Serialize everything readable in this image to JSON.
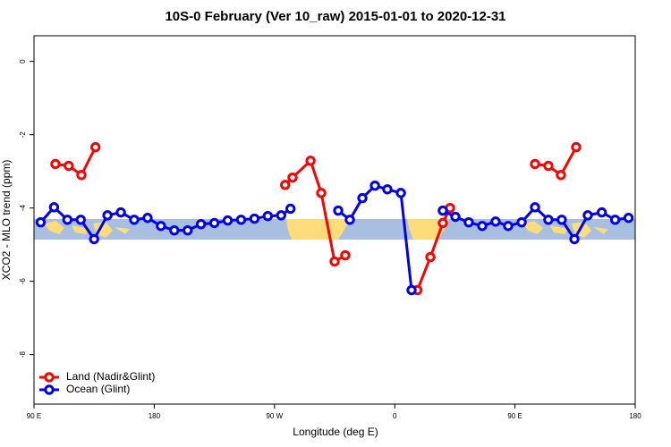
{
  "chart_data": {
    "type": "line",
    "title": "10S-0 February (Ver 10_raw)   2015-01-01 to 2020-12-31",
    "x_label": "Longitude (deg E)",
    "y_label": "XCO2 - MLO trend (ppm)",
    "xlim": [
      90,
      540
    ],
    "ylim": [
      -9.35,
      0.7
    ],
    "xticks": [
      {
        "value": 90,
        "label": "90 E"
      },
      {
        "value": 180,
        "label": "180"
      },
      {
        "value": 270,
        "label": "90 W"
      },
      {
        "value": 360,
        "label": "0"
      },
      {
        "value": 450,
        "label": "90 E"
      },
      {
        "value": 540,
        "label": "180"
      }
    ],
    "yticks": [
      0,
      -2,
      -4,
      -6,
      -8
    ],
    "legend": "bottom-left",
    "series": [
      {
        "name": "Land (Nadir&Glint)",
        "color": "#ff0000",
        "x": [
          106,
          116,
          125.5,
          136,
          200,
          278,
          283.5,
          297,
          305,
          315,
          323,
          350,
          377,
          386.7,
          396,
          401.4,
          430,
          465,
          475,
          484.4,
          495.8
        ],
        "values": [
          -2.8,
          -2.85,
          -3.1,
          -2.34,
          null,
          -3.37,
          -3.17,
          -2.71,
          -3.59,
          -5.46,
          -5.29,
          null,
          -6.24,
          -5.34,
          -4.41,
          -4.0,
          null,
          -2.8,
          -2.85,
          -3.1,
          -2.34
        ]
      },
      {
        "name": "Ocean (Glint)",
        "color": "#0000ee",
        "x": [
          95,
          105,
          115,
          125,
          135,
          145,
          155,
          165,
          175,
          185,
          195,
          205,
          215,
          225,
          235,
          245,
          255,
          265,
          275,
          282,
          300,
          317.7,
          326.4,
          335.8,
          345.2,
          354.5,
          364.6,
          372.6,
          385,
          396,
          405.4,
          415.4,
          425.5,
          435.5,
          444.9,
          455,
          465,
          475,
          485,
          494.5,
          504.5,
          515,
          525,
          535
        ],
        "values": [
          -4.39,
          -3.98,
          -4.32,
          -4.32,
          -4.85,
          -4.2,
          -4.12,
          -4.32,
          -4.27,
          -4.49,
          -4.61,
          -4.61,
          -4.44,
          -4.41,
          -4.34,
          -4.32,
          -4.29,
          -4.22,
          -4.2,
          -4.02,
          null,
          -4.07,
          -4.32,
          -3.73,
          -3.39,
          -3.49,
          -3.59,
          -6.24,
          null,
          -4.07,
          -4.24,
          -4.39,
          -4.49,
          -4.37,
          -4.49,
          -4.39,
          -3.98,
          -4.32,
          -4.32,
          -4.85,
          -4.2,
          -4.12,
          -4.32,
          -4.27
        ]
      }
    ]
  }
}
